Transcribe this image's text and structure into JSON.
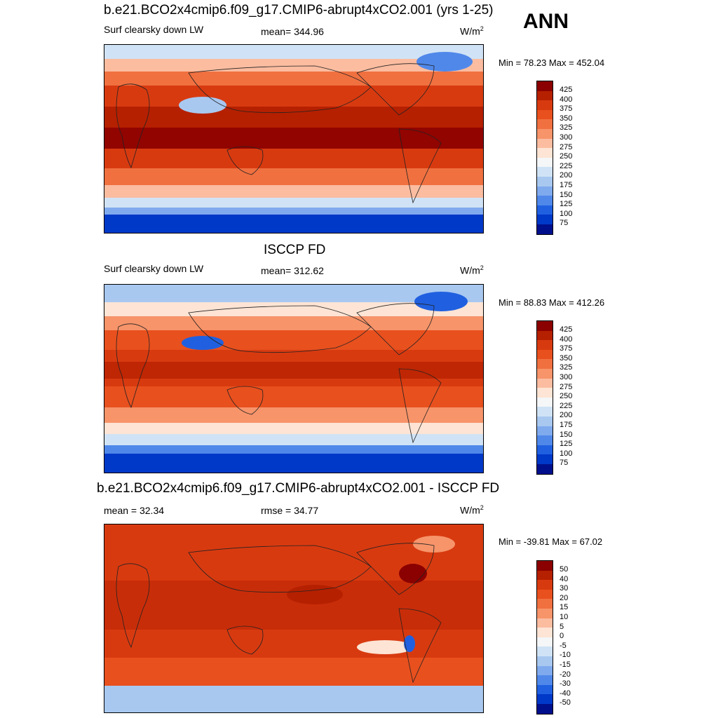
{
  "header": {
    "title_top": "b.e21.BCO2x4cmip6.f09_g17.CMIP6-abrupt4xCO2.001 (yrs 1-25)",
    "season": "ANN",
    "title_mid": "ISCCP FD",
    "title_bottom": "b.e21.BCO2x4cmip6.f09_g17.CMIP6-abrupt4xCO2.001 - ISCCP FD"
  },
  "panels": [
    {
      "variable": "Surf clearsky down LW",
      "stat": "mean= 344.96",
      "unit_base": "W/m",
      "unit_exp": "2",
      "minmax": "Min =  78.23 Max = 452.04",
      "levels": [
        "425",
        "400",
        "375",
        "350",
        "325",
        "300",
        "275",
        "250",
        "225",
        "200",
        "175",
        "150",
        "125",
        "100",
        "75"
      ]
    },
    {
      "variable": "Surf clearsky down LW",
      "stat": "mean= 312.62",
      "unit_base": "W/m",
      "unit_exp": "2",
      "minmax": "Min =  88.83 Max = 412.26",
      "levels": [
        "425",
        "400",
        "375",
        "350",
        "325",
        "300",
        "275",
        "250",
        "225",
        "200",
        "175",
        "150",
        "125",
        "100",
        "75"
      ]
    },
    {
      "stat_left": "mean =  32.34",
      "stat": "rmse =  34.77",
      "unit_base": "W/m",
      "unit_exp": "2",
      "minmax": "Min = -39.81 Max =  67.02",
      "levels": [
        "50",
        "40",
        "30",
        "20",
        "15",
        "10",
        "5",
        "0",
        "-5",
        "-10",
        "-15",
        "-20",
        "-30",
        "-40",
        "-50"
      ]
    }
  ],
  "colors": {
    "abs_scale": [
      "#8b0000",
      "#b52000",
      "#d83a10",
      "#e8501e",
      "#f07040",
      "#f7946a",
      "#fbbca0",
      "#fde4d4",
      "#f4f6f8",
      "#d0e3f6",
      "#a8c8f0",
      "#80aaee",
      "#5088ea",
      "#2060e0",
      "#0038c8",
      "#00108c"
    ],
    "diff_scale": [
      "#8b0000",
      "#b52000",
      "#d83a10",
      "#e8501e",
      "#f07040",
      "#f7946a",
      "#fbbca0",
      "#fde4d4",
      "#f4f6f8",
      "#d0e3f6",
      "#a8c8f0",
      "#80aaee",
      "#5088ea",
      "#2060e0",
      "#0038c8",
      "#00108c"
    ]
  }
}
